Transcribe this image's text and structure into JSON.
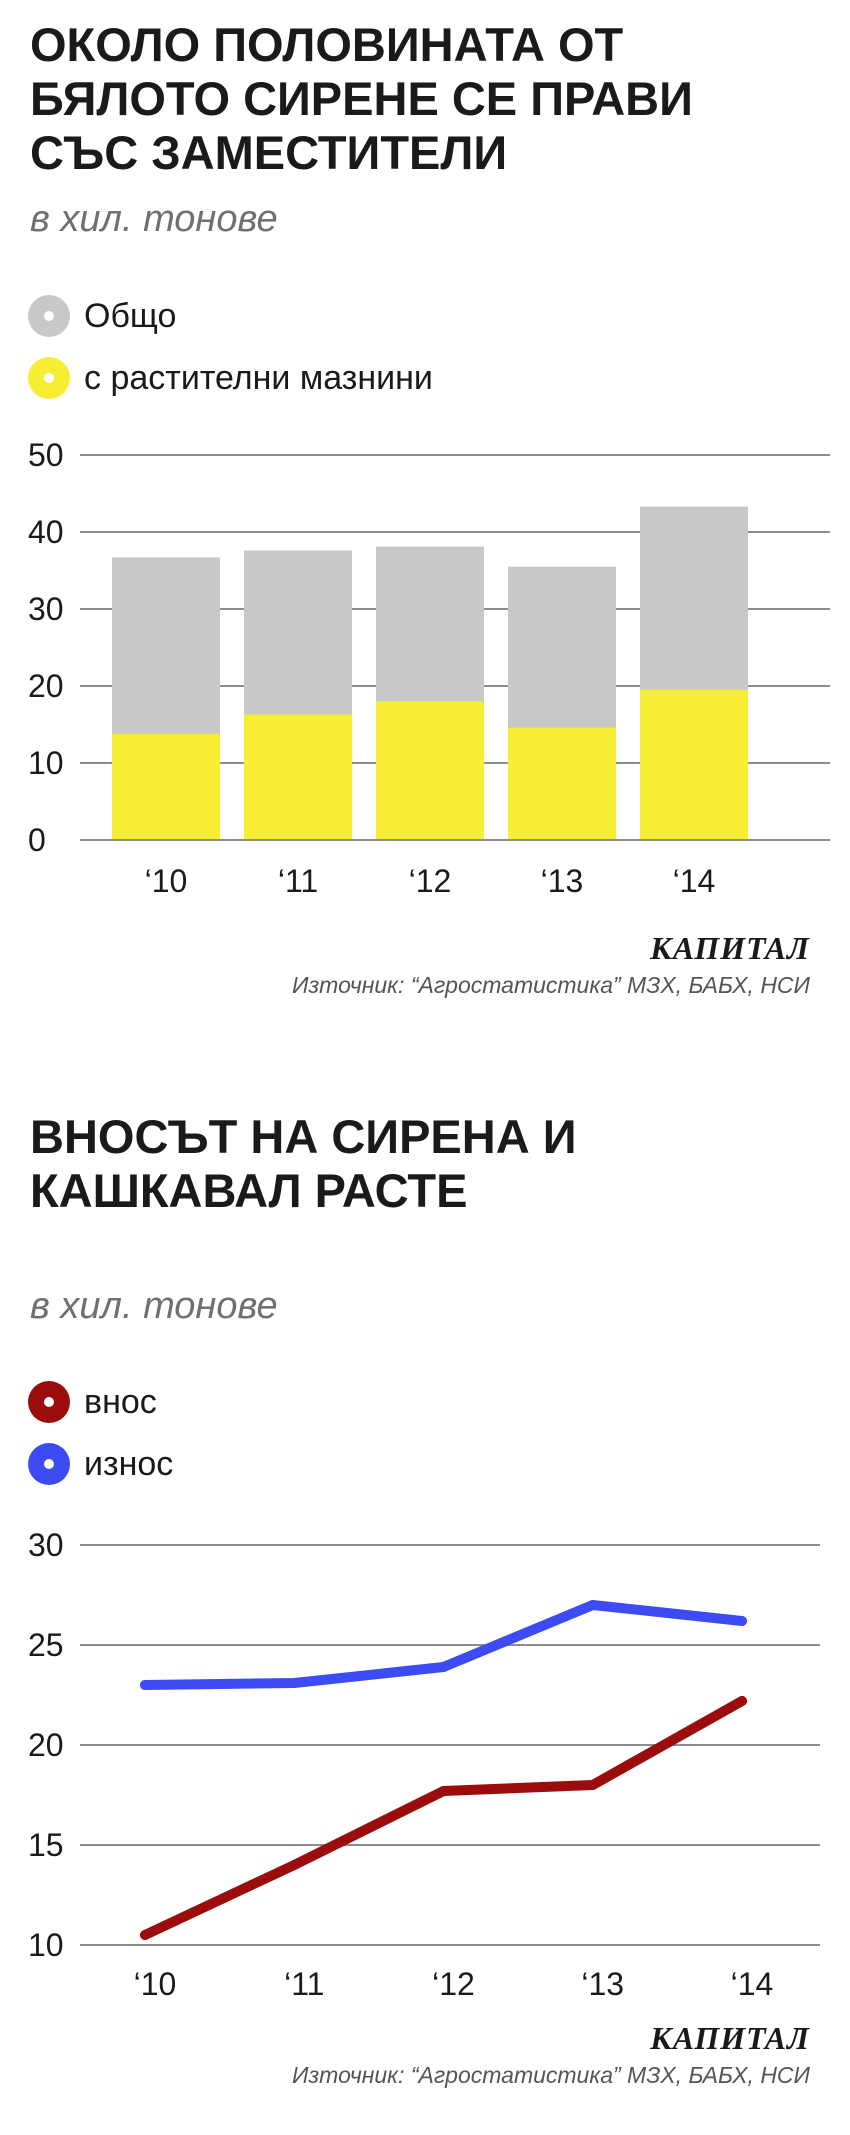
{
  "charts": [
    {
      "title": "ОКОЛО ПОЛОВИНАТА ОТ БЯЛОТО СИРЕНЕ СЕ ПРАВИ СЪС ЗАМЕСТИТЕЛИ",
      "subtitle": "в хил. тонове",
      "legend": [
        {
          "label": "Общо",
          "color": "#c8c8c8"
        },
        {
          "label": "с растителни мазнини",
          "color": "#f7ee33"
        }
      ],
      "brand": "КАПИТАЛ",
      "source": "Източник: “Агростатистика” МЗХ, БАБХ, НСИ"
    },
    {
      "title": "ВНОСЪТ НА СИРЕНА И КАШКАВАЛ РАСТЕ",
      "subtitle": "в хил. тонове",
      "legend": [
        {
          "label": "внос",
          "color": "#9b0d0d"
        },
        {
          "label": "износ",
          "color": "#3d4bf5"
        }
      ],
      "brand": "КАПИТАЛ",
      "source": "Източник: “Агростатистика” МЗХ, БАБХ, НСИ"
    }
  ],
  "chart_data": [
    {
      "type": "bar",
      "stacked": false,
      "overlaid": true,
      "title": "ОКОЛО ПОЛОВИНАТА ОТ БЯЛОТО СИРЕНЕ СЕ ПРАВИ СЪС ЗАМЕСТИТЕЛИ",
      "subtitle": "в хил. тонове",
      "categories": [
        "‘10",
        "‘11",
        "‘12",
        "‘13",
        "‘14"
      ],
      "series": [
        {
          "name": "Общо",
          "color": "#c8c8c8",
          "values": [
            36.7,
            37.6,
            38.1,
            35.5,
            43.3
          ]
        },
        {
          "name": "с растителни мазнини",
          "color": "#f7ee33",
          "values": [
            13.8,
            16.3,
            18.0,
            14.6,
            19.5
          ]
        }
      ],
      "ylim": [
        0,
        50
      ],
      "yticks": [
        0,
        10,
        20,
        30,
        40,
        50
      ],
      "grid": true,
      "legend_position": "top-left"
    },
    {
      "type": "line",
      "title": "ВНОСЪТ НА СИРЕНА И КАШКАВАЛ РАСТЕ",
      "subtitle": "в хил. тонове",
      "categories": [
        "‘10",
        "‘11",
        "‘12",
        "‘13",
        "‘14"
      ],
      "series": [
        {
          "name": "внос",
          "color": "#9b0d0d",
          "values": [
            10.5,
            14.0,
            17.7,
            18.0,
            22.2
          ]
        },
        {
          "name": "износ",
          "color": "#3d4bf5",
          "values": [
            23.0,
            23.1,
            23.9,
            27.0,
            26.2
          ]
        }
      ],
      "ylim": [
        10,
        30
      ],
      "yticks": [
        10,
        15,
        20,
        25,
        30
      ],
      "grid": true,
      "legend_position": "top-left"
    }
  ]
}
